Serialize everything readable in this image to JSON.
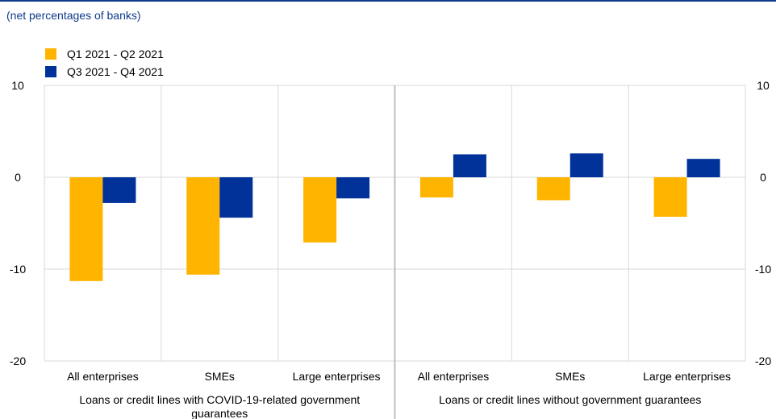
{
  "subtitle": "(net percentages of banks)",
  "colors": {
    "series1": "#FFB400",
    "series2": "#003299",
    "grid": "#d9d9d9",
    "divider": "#bfbfbf"
  },
  "chart_data": {
    "type": "bar",
    "ylim": [
      -20,
      10
    ],
    "yticks": [
      "10",
      "0",
      "-10",
      "-20"
    ],
    "categories": [
      "All enterprises",
      "SMEs",
      "Large enterprises",
      "All enterprises",
      "SMEs",
      "Large enterprises"
    ],
    "groups": [
      {
        "label_lines": [
          "Loans or credit lines with COVID-19-related government",
          "guarantees"
        ]
      },
      {
        "label_lines": [
          "Loans or credit lines without government guarantees"
        ]
      }
    ],
    "series": [
      {
        "name": "Q1 2021 - Q2 2021",
        "values": [
          -11.3,
          -10.6,
          -7.1,
          -2.2,
          -2.5,
          -4.3
        ]
      },
      {
        "name": "Q3 2021 - Q4 2021",
        "values": [
          -2.8,
          -4.4,
          -2.3,
          2.5,
          2.6,
          2.0
        ]
      }
    ],
    "grid": true,
    "legend_position": "top-left"
  }
}
